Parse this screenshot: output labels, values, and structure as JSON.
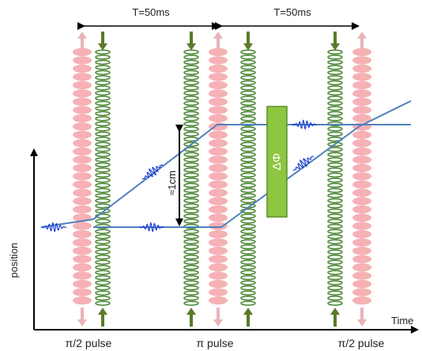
{
  "labels": {
    "period_1": "T=50ms",
    "period_2": "T=50ms",
    "height": "≈1cm",
    "phase": "ΔΦ",
    "y_axis": "position",
    "x_axis": "Time",
    "pulse_1": "π/2 pulse",
    "pulse_2": "π pulse",
    "pulse_3": "π/2 pulse"
  },
  "colors": {
    "red_beam": "#f4a3a8",
    "green_beam": "#4f8a3a",
    "trajectory": "#4f81bd",
    "wave_packet": "#1f3fcf",
    "phase_box": "#8dc63f",
    "phase_box_border": "#5e8f2a",
    "pink_arrow": "#e8b4b8",
    "green_arrow": "#5a7a2a",
    "axis": "#000000"
  }
}
